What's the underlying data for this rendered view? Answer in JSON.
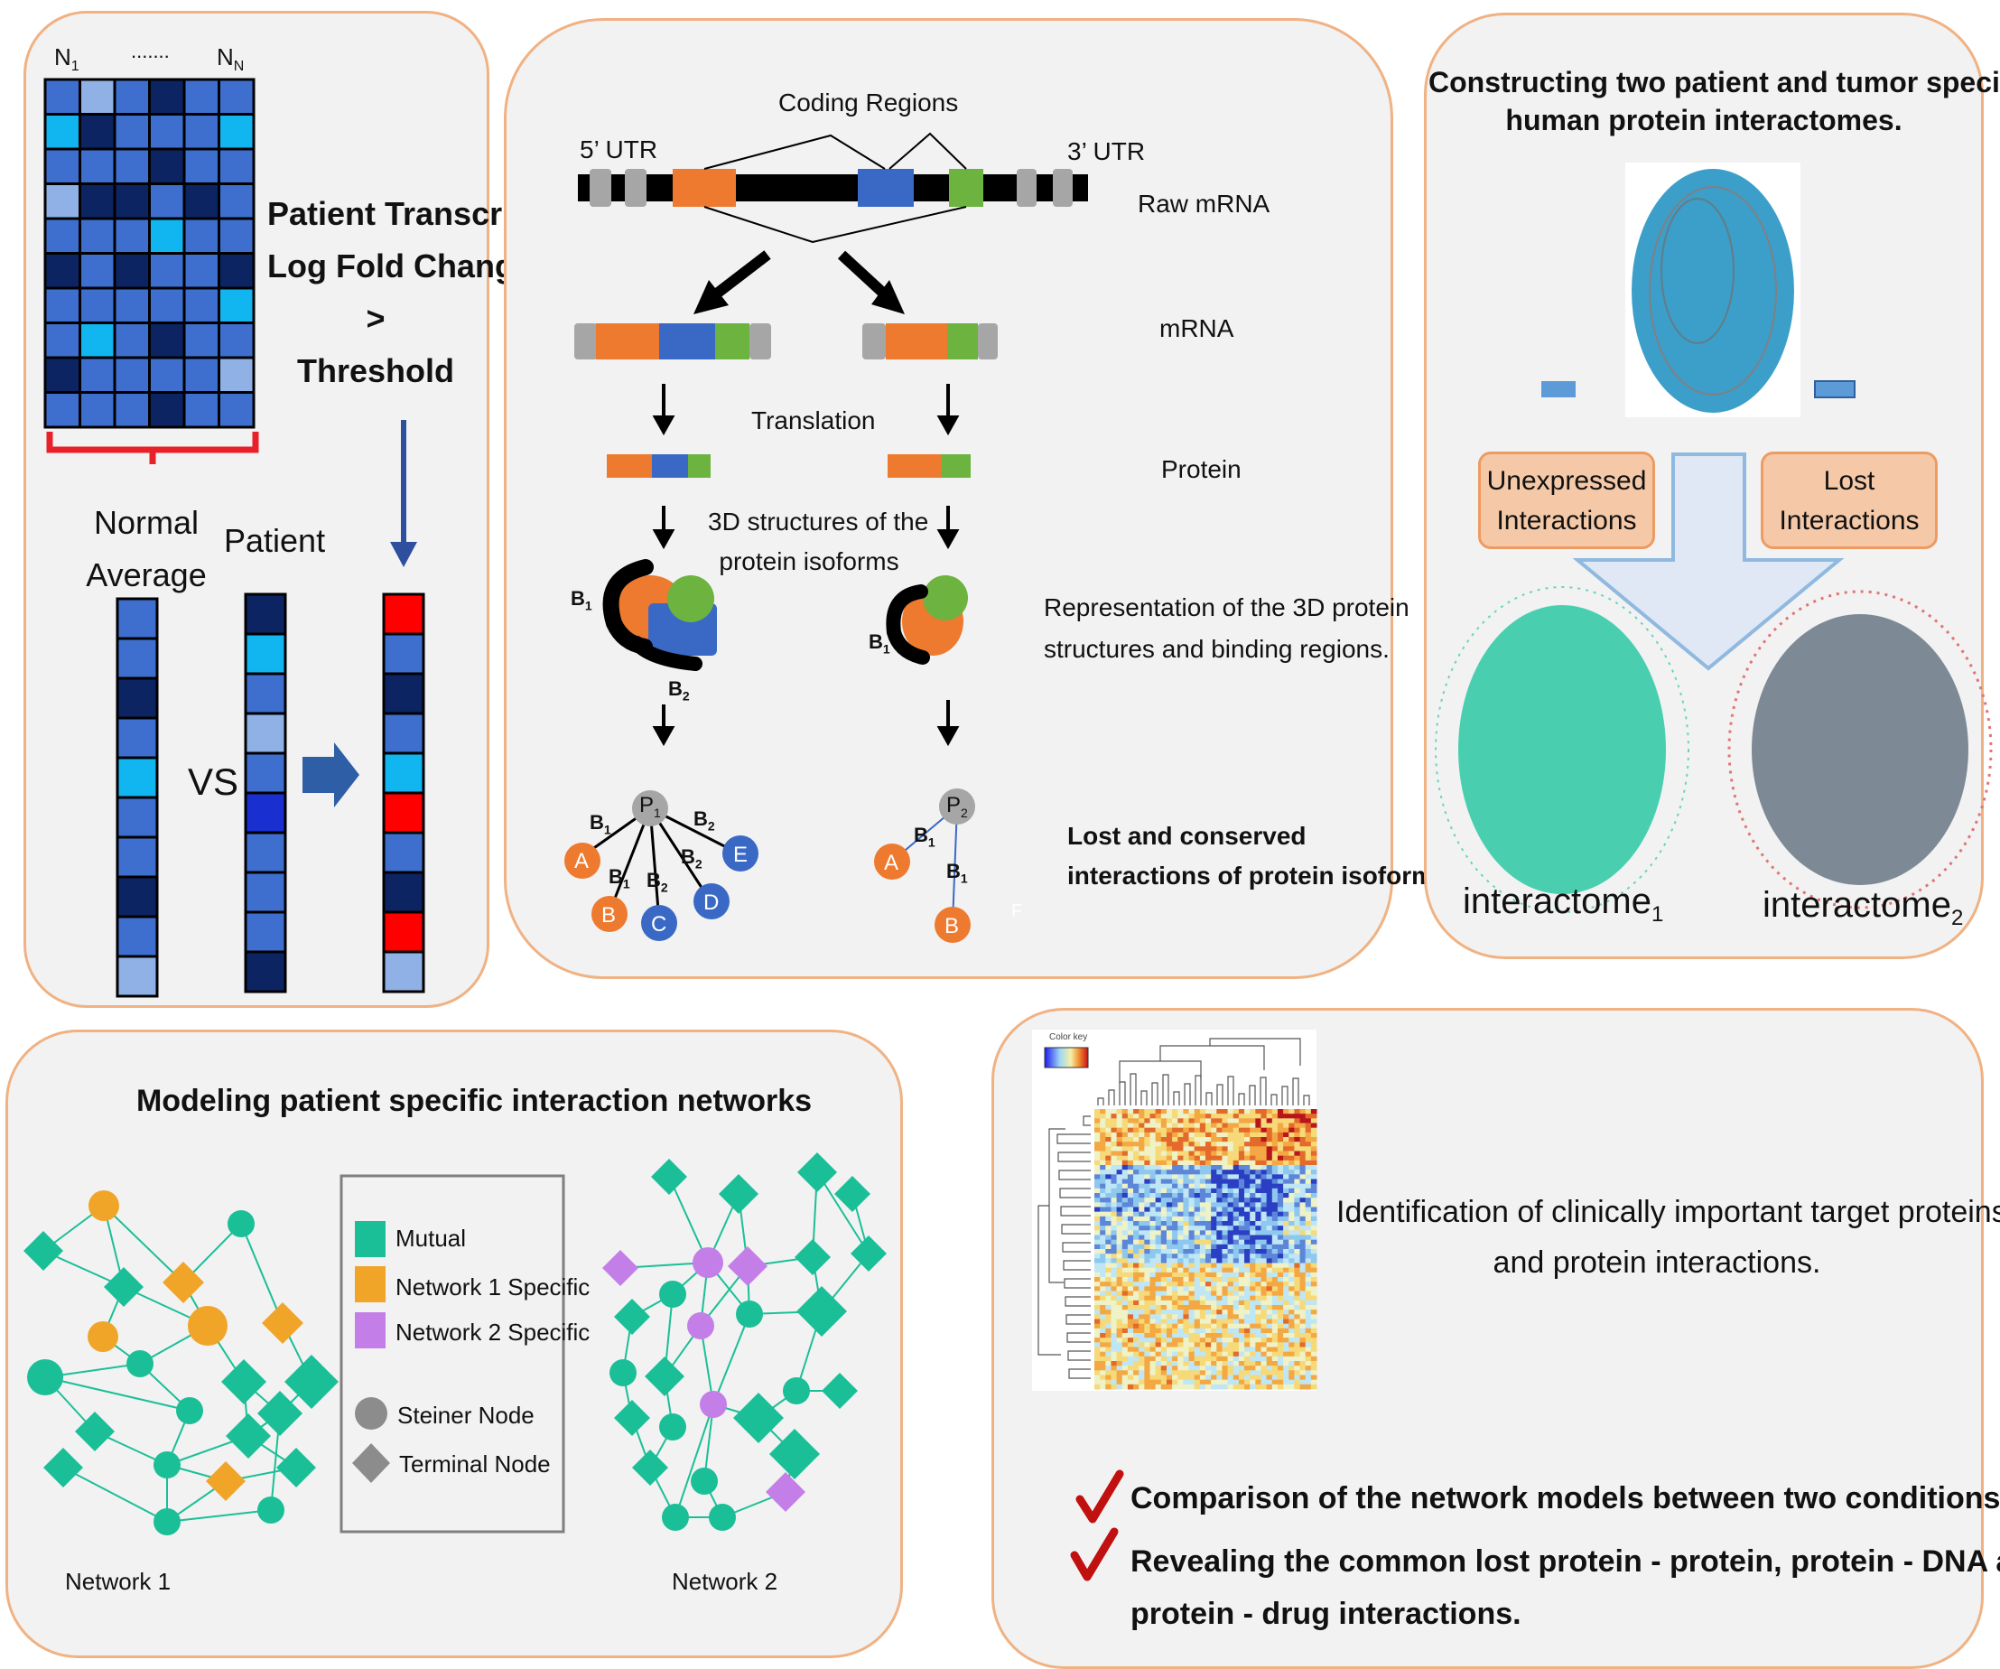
{
  "panel1": {
    "heatmap_label_first": "N",
    "heatmap_label_first_sub": "1",
    "heatmap_label_dots": ".......",
    "heatmap_label_last": "N",
    "heatmap_label_last_sub": "N",
    "title_line1": "Patient Transcript",
    "title_line2": "Log Fold Change",
    "title_line3": ">",
    "title_line4": "Threshold",
    "normal_line1": "Normal",
    "normal_line2": "Average",
    "patient_label": "Patient",
    "vs_label": "VS",
    "colors": {
      "dark": "#0d2463",
      "mid": "#3e6fcf",
      "light": "#8fb1e6",
      "cyan": "#11b5f0",
      "red": "#ff0000"
    }
  },
  "panel2": {
    "coding_regions": "Coding Regions",
    "utr5": "5’ UTR",
    "utr3": "3’ UTR",
    "raw_mrna": "Raw mRNA",
    "mrna": "mRNA",
    "translation": "Translation",
    "protein": "Protein",
    "structures_line1": "3D structures of the",
    "structures_line2": "protein isoforms",
    "representation_line1": "Representation of the 3D protein",
    "representation_line2": "structures and binding regions.",
    "lost_line1": "Lost and conserved",
    "lost_line2": "interactions of protein isoforms.",
    "b_label": "B",
    "sub1": "1",
    "sub2": "2",
    "p_label": "P",
    "nodes": [
      "A",
      "B",
      "C",
      "D",
      "E"
    ],
    "stray_letter": "F",
    "colors": {
      "orange": "#ee7a2f",
      "blue": "#3a69c5",
      "green": "#6cb33f",
      "gray": "#a6a6a6"
    }
  },
  "panel3": {
    "title_line1": "Constructing two patient and tumor specific",
    "title_line2": "human protein interactomes.",
    "unexpressed_line1": "Unexpressed",
    "unexpressed_line2": "Interactions",
    "lost_line1": "Lost",
    "lost_line2": "Interactions",
    "interactome": "interactome",
    "sub1": "1",
    "sub2": "2"
  },
  "panel4": {
    "title": "Modeling patient specific interaction networks",
    "legend": [
      "Mutual",
      "Network 1 Specific",
      "Network 2 Specific",
      "Steiner Node",
      "Terminal Node"
    ],
    "network1": "Network 1",
    "network2": "Network 2",
    "colors": {
      "mutual": "#1bbf97",
      "net1": "#f0a529",
      "net2": "#c47ee8",
      "steiner": "#8c8c8c"
    }
  },
  "panel5": {
    "color_key": "Color key",
    "identification_line1": "Identification of clinically important target proteins",
    "identification_line2": "and protein interactions.",
    "bullet1": "Comparison of the network models between two conditions.",
    "bullet2_line1": "Revealing the common lost protein - protein, protein - DNA and",
    "bullet2_line2": "protein - drug interactions."
  }
}
